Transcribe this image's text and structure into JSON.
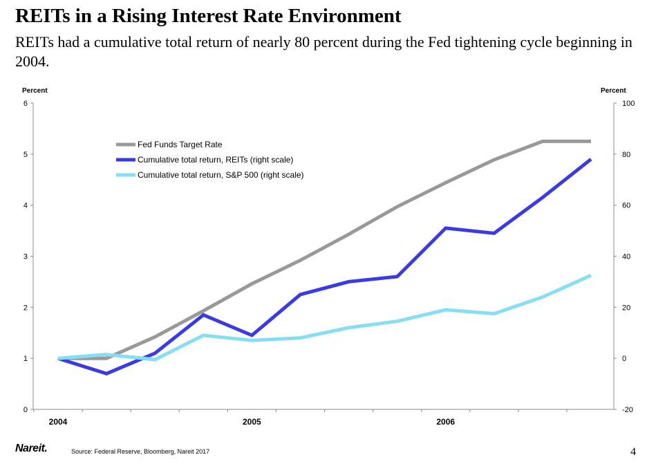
{
  "slide": {
    "title": "REITs in a Rising Interest Rate Environment",
    "subtitle": "REITs had a cumulative total return of nearly 80 percent during the Fed tightening cycle beginning in 2004.",
    "source": "Source: Federal Reserve, Bloomberg, Nareit 2017",
    "logo_text": "Nareit.",
    "page_number": "4"
  },
  "chart_data": {
    "type": "line",
    "title": "",
    "left_axis": {
      "label": "Percent",
      "min": 0,
      "max": 6,
      "ticks": [
        0,
        1,
        2,
        3,
        4,
        5,
        6
      ]
    },
    "right_axis": {
      "label": "Percent",
      "min": -20,
      "max": 100,
      "ticks": [
        -20,
        0,
        20,
        40,
        60,
        80,
        100
      ]
    },
    "x_tick_labels": [
      "2004",
      "2005",
      "2006"
    ],
    "x_tick_label_positions": [
      0,
      4,
      8
    ],
    "x_points": 12,
    "series": [
      {
        "name": "Fed Funds Target Rate",
        "axis": "left",
        "color": "#999999",
        "values": [
          1.0,
          1.0,
          1.42,
          1.93,
          2.46,
          2.92,
          3.43,
          3.97,
          4.44,
          4.89,
          5.25,
          5.25
        ]
      },
      {
        "name": "Cumulative total return, REITs (right scale)",
        "axis": "right",
        "color": "#3b3be0",
        "values": [
          0,
          -6,
          2,
          17,
          9,
          25,
          30,
          32,
          51,
          49,
          63,
          78
        ]
      },
      {
        "name": "Cumulative total return, S&P 500 (right scale)",
        "axis": "right",
        "color": "#86def2",
        "values": [
          0,
          1.5,
          -0.5,
          9,
          7,
          8,
          12,
          14.5,
          19,
          17.5,
          24,
          32.5
        ]
      }
    ]
  }
}
